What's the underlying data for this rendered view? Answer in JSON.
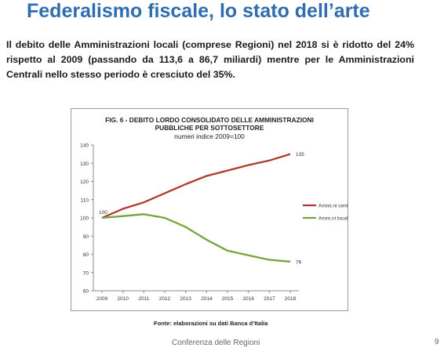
{
  "slide": {
    "title": "Federalismo fiscale, lo stato dell’arte",
    "intro": "Il debito delle Amministrazioni locali (comprese Regioni) nel 2018 si è ridotto del 24% rispetto al 2009 (passando da 113,6 a 86,7 miliardi) mentre per le Amministrazioni Centrali nello stesso periodo è cresciuto del 35%.",
    "source": "Fonte: elaborazioni su dati Banca d’Italia",
    "footer": "Conferenza delle Regioni",
    "page_number": "9"
  },
  "chart_data": {
    "type": "line",
    "title_line1": "FIG. 6 - DEBITO LORDO CONSOLIDATO DELLE AMMINISTRAZIONI",
    "title_line2": "PUBBLICHE PER SOTTOSETTORE",
    "subtitle": "numeri indice 2009=100",
    "x": [
      "2009",
      "2010",
      "2011",
      "2012",
      "2013",
      "2014",
      "2015",
      "2016",
      "2017",
      "2018"
    ],
    "ylim": [
      60,
      140
    ],
    "yticks": [
      "60",
      "70",
      "80",
      "90",
      "100",
      "110",
      "120",
      "130",
      "140"
    ],
    "grid": false,
    "legend": "right",
    "series": [
      {
        "name": "Ammi.ni centrali",
        "color": "#b03a2e",
        "values": [
          100,
          105,
          108.5,
          113.5,
          118.5,
          123,
          126,
          129,
          131.5,
          135
        ]
      },
      {
        "name": "Amm.ni locali",
        "color": "#77a33a",
        "values": [
          100,
          101,
          102,
          100,
          95,
          88,
          82,
          79.5,
          77,
          76
        ]
      }
    ],
    "annotations": [
      {
        "label": "100",
        "series": 0,
        "index": 0
      },
      {
        "label": "135",
        "series": 0,
        "index": 9
      },
      {
        "label": "76",
        "series": 1,
        "index": 9
      }
    ]
  }
}
